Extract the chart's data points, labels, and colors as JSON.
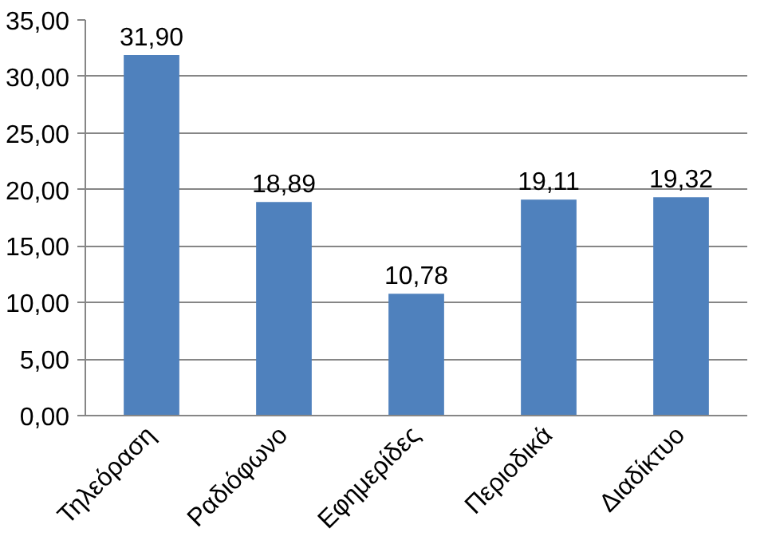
{
  "chart_data": {
    "type": "bar",
    "categories": [
      "Τηλεόραση",
      "Ραδιόφωνο",
      "Εφημερίδες",
      "Περιοδικά",
      "Διαδίκτυο"
    ],
    "values": [
      31.9,
      18.89,
      10.78,
      19.11,
      19.32
    ],
    "value_labels": [
      "31,90",
      "18,89",
      "10,78",
      "19,11",
      "19,32"
    ],
    "color": "#4f81bd",
    "ylim": [
      0,
      35
    ],
    "yticks": [
      {
        "value": 0,
        "label": "0,00"
      },
      {
        "value": 5,
        "label": "5,00"
      },
      {
        "value": 10,
        "label": "10,00"
      },
      {
        "value": 15,
        "label": "15,00"
      },
      {
        "value": 20,
        "label": "20,00"
      },
      {
        "value": 25,
        "label": "25,00"
      },
      {
        "value": 30,
        "label": "30,00"
      },
      {
        "value": 35,
        "label": "35,00"
      }
    ],
    "grid": "y"
  }
}
